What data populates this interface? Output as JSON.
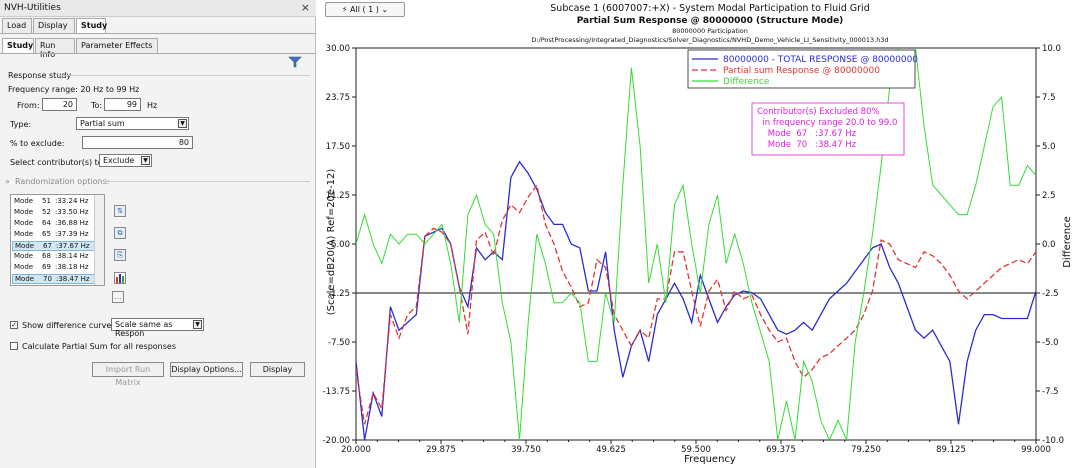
{
  "panel": {
    "title": "NVH-Utilities",
    "close": "×",
    "main_tabs": [
      "Load",
      "Display",
      "Study"
    ],
    "sub_tabs": [
      "Study",
      "Run Info",
      "Parameter Effects"
    ],
    "response_study_label": "Response study",
    "frequency_range_text": "Frequency range: 20 Hz to 99 Hz",
    "from_label": "From:",
    "from_value": "20",
    "to_label": "To:",
    "to_value": "99",
    "hz_label": "Hz",
    "type_label": "Type:",
    "type_value": "Partial sum",
    "exclude_label": "% to exclude:",
    "exclude_value": "80",
    "select_label": "Select contributor(s) to:",
    "select_value": "Exclude",
    "randomization_label": "Randomization options:",
    "modes": [
      {
        "label": "Mode",
        "num": "51",
        "freq": ":33.24 Hz",
        "selected": false
      },
      {
        "label": "Mode",
        "num": "52",
        "freq": ":33.50 Hz",
        "selected": false
      },
      {
        "label": "Mode",
        "num": "64",
        "freq": ":36.88 Hz",
        "selected": false
      },
      {
        "label": "Mode",
        "num": "65",
        "freq": ":37.39 Hz",
        "selected": false
      },
      {
        "label": "Mode",
        "num": "67",
        "freq": ":37.67 Hz",
        "selected": true
      },
      {
        "label": "Mode",
        "num": "68",
        "freq": ":38.14 Hz",
        "selected": false
      },
      {
        "label": "Mode",
        "num": "69",
        "freq": ":38.18 Hz",
        "selected": false
      },
      {
        "label": "Mode",
        "num": "70",
        "freq": ":38.47 Hz",
        "selected": true
      }
    ],
    "show_diff_label": "Show difference curve as:",
    "show_diff_value": "Scale same as Respon",
    "show_diff_checked": "✓",
    "calc_partial_label": "Calculate Partial Sum for all responses",
    "import_btn": "Import Run Matrix",
    "display_options_btn": "Display Options...",
    "display_btn": "Display"
  },
  "toolbar": {
    "all_label": "All ( 1 ) ⌄"
  },
  "chart_data": {
    "type": "line",
    "title": "Subcase 1 (6007007:+X) - System Modal Participation to Fluid Grid",
    "subtitle": "Partial Sum Response @ 80000000 (Structure Mode)",
    "subtitle2": "80000000 Participation",
    "subtitle3": "D:/PostProcessing/Integrated_Diagnostics/Solver_Diagnostics/NVHD_Demo_Vehicle_LI_Sensitivity_000013.h3d",
    "xlabel": "Frequency",
    "ylabel": "(Scale=dB20(A) Ref=20e-12)",
    "y2label": "Difference",
    "xlim": [
      20,
      99
    ],
    "ylim": [
      -20,
      30
    ],
    "y2lim": [
      -10,
      10
    ],
    "xticks": [
      "20.000",
      "29.875",
      "39.750",
      "49.625",
      "59.500",
      "69.375",
      "79.250",
      "89.125",
      "99.000"
    ],
    "yticks": [
      "30.00",
      "23.75",
      "17.50",
      "11.25",
      "5.00",
      "-1.25",
      "-7.50",
      "-13.75",
      "-20.00"
    ],
    "y2ticks": [
      "10.0",
      "7.5",
      "5.0",
      "2.5",
      "0.0",
      "-2.5",
      "-5.0",
      "-7.5",
      "-10.0"
    ],
    "reference_line_y": -1.25,
    "colors": {
      "total": "#2b2bd4",
      "partial": "#e03535",
      "diff": "#33dd33",
      "annot": "#e020e0"
    },
    "series": [
      {
        "name": "80000000 - TOTAL RESPONSE @ 80000000",
        "key": "total",
        "x": [
          20,
          21,
          22,
          23,
          24,
          25,
          26,
          27,
          28,
          29,
          30,
          31,
          32,
          33,
          34,
          35,
          36,
          37,
          38,
          39,
          40,
          41,
          42,
          43,
          44,
          45,
          46,
          47,
          48,
          49,
          50,
          51,
          52,
          53,
          54,
          55,
          56,
          57,
          58,
          59,
          60,
          61,
          62,
          63,
          64,
          65,
          66,
          67,
          68,
          69,
          70,
          71,
          72,
          73,
          74,
          75,
          76,
          77,
          78,
          79,
          80,
          81,
          82,
          83,
          84,
          85,
          86,
          87,
          88,
          89,
          90,
          91,
          92,
          93,
          94,
          95,
          96,
          97,
          98,
          99
        ],
        "y": [
          -10,
          -20,
          -14,
          -17,
          -3,
          -6,
          -5,
          -4,
          6,
          6.5,
          7,
          5,
          -0.5,
          -3,
          4.5,
          3,
          4,
          3,
          13.5,
          15.5,
          14,
          12,
          9,
          7.5,
          7.5,
          5,
          4.5,
          -1,
          -1,
          4,
          -6,
          -12,
          -8,
          -6,
          -10,
          -4,
          -2,
          0,
          -2,
          -5,
          1,
          -2,
          -5,
          -3,
          -1.5,
          -1,
          -1.2,
          -2,
          -4,
          -6,
          -6.5,
          -6,
          -5,
          -6,
          -4,
          -2,
          -1,
          0,
          1.5,
          3,
          4.5,
          5,
          2,
          0,
          -3,
          -6,
          -7,
          -6,
          -8,
          -10,
          -18,
          -10,
          -6,
          -4,
          -4,
          -4.5,
          -4.5,
          -4.5,
          -4.5,
          -1
        ],
        "style": "solid"
      },
      {
        "name": "Partial sum Response @ 80000000",
        "key": "partial",
        "x": [
          20,
          21,
          22,
          23,
          24,
          25,
          26,
          27,
          28,
          29,
          30,
          31,
          32,
          33,
          34,
          35,
          36,
          37,
          38,
          39,
          40,
          41,
          42,
          43,
          44,
          45,
          46,
          47,
          48,
          49,
          50,
          51,
          52,
          53,
          54,
          55,
          56,
          57,
          58,
          59,
          60,
          61,
          62,
          63,
          64,
          65,
          66,
          67,
          68,
          69,
          70,
          71,
          72,
          73,
          74,
          75,
          76,
          77,
          78,
          79,
          80,
          81,
          82,
          83,
          84,
          85,
          86,
          87,
          88,
          89,
          90,
          91,
          92,
          93,
          94,
          95,
          96,
          97,
          98,
          99
        ],
        "y": [
          -11,
          -18,
          -14,
          -16,
          -4,
          -7,
          -4,
          -3,
          6,
          7,
          6.5,
          5,
          -0.5,
          -6.5,
          5.5,
          6.5,
          3.5,
          8,
          10,
          9,
          11,
          12.5,
          7.5,
          5,
          1.5,
          -0.5,
          -3,
          -2.5,
          3,
          2,
          -4,
          -6,
          -8,
          -6,
          -7,
          -2,
          -2,
          4,
          4,
          -1,
          -5.5,
          -1,
          0.5,
          -3.5,
          -1,
          -2,
          -1.5,
          -4,
          -6,
          -7.5,
          -7,
          -10,
          -12,
          -11,
          -9.5,
          -9,
          -8,
          -7,
          -6,
          -4,
          -1,
          5.5,
          5,
          3,
          2.5,
          2,
          4,
          3.5,
          2.5,
          1,
          -1,
          -2,
          -1,
          0,
          1,
          2,
          2.5,
          3,
          2.5,
          4
        ],
        "style": "dashed"
      },
      {
        "name": "Difference",
        "key": "diff",
        "x": [
          20,
          21,
          22,
          23,
          24,
          25,
          26,
          27,
          28,
          29,
          30,
          31,
          32,
          33,
          34,
          35,
          36,
          37,
          38,
          39,
          40,
          41,
          42,
          43,
          44,
          45,
          46,
          47,
          48,
          49,
          50,
          51,
          52,
          53,
          54,
          55,
          56,
          57,
          58,
          59,
          60,
          61,
          62,
          63,
          64,
          65,
          66,
          67,
          68,
          69,
          70,
          71,
          72,
          73,
          74,
          75,
          76,
          77,
          78,
          79,
          80,
          81,
          82,
          83,
          84,
          85,
          86,
          87,
          88,
          89,
          90,
          91,
          92,
          93,
          94,
          95,
          96,
          97,
          98,
          99
        ],
        "y": [
          0,
          1.5,
          0,
          -1,
          0.5,
          0,
          0.5,
          0.5,
          0,
          0.5,
          1,
          -1,
          -4,
          1.5,
          2.5,
          1,
          0.5,
          -3,
          -5,
          -10,
          -4,
          0.5,
          -1,
          -3,
          -3,
          -2.5,
          -3,
          -6,
          -6,
          -2.5,
          -4,
          3,
          9,
          5,
          -2,
          0,
          -3,
          2,
          3,
          0,
          -2.5,
          1,
          2.5,
          -1,
          0.5,
          -1,
          -3,
          -4.5,
          -6,
          -10,
          -8,
          -10,
          -6,
          -7,
          -9,
          -10,
          -9,
          -10,
          -5,
          -2.5,
          0.5,
          4,
          8,
          10,
          12,
          10,
          6,
          3,
          2.5,
          2,
          1.5,
          1.5,
          3,
          5,
          7,
          7.5,
          3,
          3,
          4,
          3.5
        ],
        "style": "solid"
      }
    ],
    "annotation": {
      "lines": [
        "Contributor(s) Excluded 80%",
        "  in frequency range 20.0 to 99.0",
        "    Mode  67   :37.67 Hz",
        "    Mode  70   :38.47 Hz"
      ]
    }
  }
}
